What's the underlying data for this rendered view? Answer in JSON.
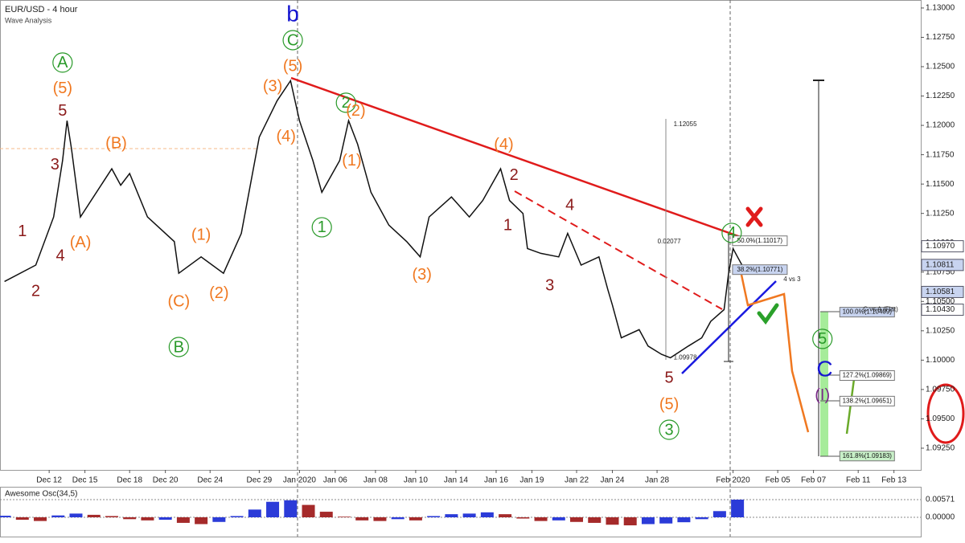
{
  "chart_data": [
    {
      "type": "line",
      "title": "EUR/USD - 4 hour",
      "subtitle": "Wave Analysis",
      "xlim": [
        0,
        206
      ],
      "ylim": [
        1.09065,
        1.13068
      ],
      "xticks": [
        {
          "value": 11,
          "label": "Dec 12"
        },
        {
          "value": 19,
          "label": "Dec 15"
        },
        {
          "value": 29,
          "label": "Dec 18"
        },
        {
          "value": 37,
          "label": "Dec 20"
        },
        {
          "value": 47,
          "label": "Dec 24"
        },
        {
          "value": 58,
          "label": "Dec 29"
        },
        {
          "value": 67,
          "label": "Jan 2020"
        },
        {
          "value": 75,
          "label": "Jan 06"
        },
        {
          "value": 84,
          "label": "Jan 08"
        },
        {
          "value": 93,
          "label": "Jan 10"
        },
        {
          "value": 102,
          "label": "Jan 14"
        },
        {
          "value": 111,
          "label": "Jan 16"
        },
        {
          "value": 119,
          "label": "Jan 19"
        },
        {
          "value": 129,
          "label": "Jan 22"
        },
        {
          "value": 137,
          "label": "Jan 24"
        },
        {
          "value": 147,
          "label": "Jan 28"
        },
        {
          "value": 164,
          "label": "Feb 2020"
        },
        {
          "value": 174,
          "label": "Feb 05"
        },
        {
          "value": 182,
          "label": "Feb 07"
        },
        {
          "value": 192,
          "label": "Feb 11"
        },
        {
          "value": 200,
          "label": "Feb 13"
        }
      ],
      "yticks": [
        {
          "value": 1.0925,
          "label": "1.09250"
        },
        {
          "value": 1.095,
          "label": "1.09500"
        },
        {
          "value": 1.0975,
          "label": "1.09750"
        },
        {
          "value": 1.1,
          "label": "1.10000"
        },
        {
          "value": 1.1025,
          "label": "1.10250"
        },
        {
          "value": 1.105,
          "label": "1.10500"
        },
        {
          "value": 1.1075,
          "label": "1.10750"
        },
        {
          "value": 1.11,
          "label": "1.11000"
        },
        {
          "value": 1.1125,
          "label": "1.11250"
        },
        {
          "value": 1.115,
          "label": "1.11500"
        },
        {
          "value": 1.1175,
          "label": "1.11750"
        },
        {
          "value": 1.12,
          "label": "1.12000"
        },
        {
          "value": 1.1225,
          "label": "1.12250"
        },
        {
          "value": 1.125,
          "label": "1.12500"
        },
        {
          "value": 1.1275,
          "label": "1.12750"
        },
        {
          "value": 1.13,
          "label": "1.13000"
        }
      ],
      "x": [
        1,
        8,
        12,
        14,
        15,
        16,
        18,
        25,
        27,
        29,
        33,
        39,
        40,
        45,
        50,
        54,
        58,
        62,
        65,
        67,
        70,
        72,
        76,
        78,
        80,
        83,
        87,
        91,
        94,
        96,
        101,
        105,
        108,
        112,
        114,
        117,
        118,
        121,
        125,
        127,
        130,
        134,
        136,
        137,
        139,
        143,
        145,
        148,
        150,
        154,
        157,
        159,
        162,
        163,
        164,
        165,
        166
      ],
      "series": [
        {
          "name": "EUR/USD",
          "color": "#111111",
          "values": [
            1.1067,
            1.1081,
            1.1122,
            1.117,
            1.1204,
            1.118,
            1.1122,
            1.1163,
            1.1149,
            1.1159,
            1.1122,
            1.1101,
            1.1074,
            1.1088,
            1.1074,
            1.1108,
            1.119,
            1.1221,
            1.1238,
            1.1204,
            1.117,
            1.1143,
            1.117,
            1.1204,
            1.1184,
            1.1143,
            1.1115,
            1.1101,
            1.1088,
            1.1122,
            1.1139,
            1.1122,
            1.1136,
            1.1163,
            1.1136,
            1.1125,
            1.1095,
            1.1091,
            1.1088,
            1.1108,
            1.1081,
            1.1088,
            1.106,
            1.1047,
            1.1019,
            1.1026,
            1.1012,
            1.1005,
            1.1002,
            1.1012,
            1.1019,
            1.1033,
            1.1043,
            1.1074,
            1.1095,
            1.1088,
            1.1081
          ]
        }
      ],
      "price_tags": [
        {
          "value": 1.1097,
          "label": "1.10970",
          "color": "#ffffff"
        },
        {
          "value": 1.10811,
          "label": "1.10811",
          "color": "#c8d4f0"
        },
        {
          "value": 1.10581,
          "label": "1.10581",
          "color": "#c8d4f0"
        },
        {
          "value": 1.1043,
          "label": "1.10430",
          "color": "#ffffff"
        }
      ],
      "fib_levels": [
        {
          "x": 170,
          "value": 1.11017,
          "label": "50.0%(1.11017)",
          "color": "#ffffff"
        },
        {
          "x": 170,
          "value": 1.10771,
          "label": "38.2%(1.10771)",
          "color": "#c8d4f0"
        },
        {
          "x": 194,
          "value": 1.10409,
          "label": "100.0%(1.10409)",
          "color": "#c8d4f0"
        },
        {
          "x": 194,
          "value": 1.09869,
          "label": "127.2%(1.09869)",
          "color": "#ffffff"
        },
        {
          "x": 194,
          "value": 1.09651,
          "label": "138.2%(1.09651)",
          "color": "#ffffff"
        },
        {
          "x": 194,
          "value": 1.09183,
          "label": "161.8%(1.09183)",
          "color": "#c8f0c8"
        }
      ],
      "annotations": [
        {
          "text": "b",
          "x": 65.5,
          "y": 1.12945,
          "color": "#1515d0"
        },
        {
          "text": "C",
          "x": 65.5,
          "y": 1.12726,
          "color": "#2a9a2a",
          "circled": true
        },
        {
          "text": "(5)",
          "x": 65.5,
          "y": 1.12507,
          "color": "#f07820"
        },
        {
          "text": "(3)",
          "x": 61,
          "y": 1.12336,
          "color": "#f07820"
        },
        {
          "text": "(4)",
          "x": 64,
          "y": 1.11905,
          "color": "#f07820"
        },
        {
          "text": "A",
          "x": 14,
          "y": 1.12535,
          "color": "#2a9a2a",
          "circled": true
        },
        {
          "text": "(5)",
          "x": 14,
          "y": 1.12316,
          "color": "#f07820"
        },
        {
          "text": "5",
          "x": 14,
          "y": 1.12124,
          "color": "#8b1a1a"
        },
        {
          "text": "3",
          "x": 12.3,
          "y": 1.11666,
          "color": "#8b1a1a"
        },
        {
          "text": "(B)",
          "x": 26,
          "y": 1.1185,
          "color": "#f07820"
        },
        {
          "text": "(A)",
          "x": 18,
          "y": 1.11002,
          "color": "#f07820"
        },
        {
          "text": "1",
          "x": 5,
          "y": 1.11098,
          "color": "#8b1a1a"
        },
        {
          "text": "4",
          "x": 13.5,
          "y": 1.10892,
          "color": "#8b1a1a"
        },
        {
          "text": "2",
          "x": 8,
          "y": 1.10591,
          "color": "#8b1a1a"
        },
        {
          "text": "(1)",
          "x": 45,
          "y": 1.1107,
          "color": "#f07820"
        },
        {
          "text": "(2)",
          "x": 49,
          "y": 1.10571,
          "color": "#f07820"
        },
        {
          "text": "(C)",
          "x": 40,
          "y": 1.10502,
          "color": "#f07820"
        },
        {
          "text": "B",
          "x": 40,
          "y": 1.10112,
          "color": "#2a9a2a",
          "circled": true
        },
        {
          "text": "1",
          "x": 72,
          "y": 1.11132,
          "color": "#2a9a2a",
          "circled": true
        },
        {
          "text": "2",
          "x": 77.4,
          "y": 1.12193,
          "color": "#2a9a2a",
          "circled": true
        },
        {
          "text": "(2)",
          "x": 79.6,
          "y": 1.12124,
          "color": "#f07820"
        },
        {
          "text": "(1)",
          "x": 78.7,
          "y": 1.117,
          "color": "#f07820"
        },
        {
          "text": "(3)",
          "x": 94.4,
          "y": 1.10728,
          "color": "#f07820"
        },
        {
          "text": "(4)",
          "x": 112.7,
          "y": 1.11837,
          "color": "#f07820"
        },
        {
          "text": "2",
          "x": 115,
          "y": 1.11577,
          "color": "#8b1a1a"
        },
        {
          "text": "1",
          "x": 113.6,
          "y": 1.11152,
          "color": "#8b1a1a"
        },
        {
          "text": "4",
          "x": 127.5,
          "y": 1.11323,
          "color": "#8b1a1a"
        },
        {
          "text": "3",
          "x": 123,
          "y": 1.10639,
          "color": "#8b1a1a"
        },
        {
          "text": "5",
          "x": 149.7,
          "y": 1.09852,
          "color": "#8b1a1a"
        },
        {
          "text": "(5)",
          "x": 149.7,
          "y": 1.09626,
          "color": "#f07820"
        },
        {
          "text": "3",
          "x": 149.7,
          "y": 1.09407,
          "color": "#2a9a2a",
          "circled": true
        },
        {
          "text": "4",
          "x": 163.7,
          "y": 1.11084,
          "color": "#2a9a2a",
          "circled": true
        },
        {
          "text": "5",
          "x": 184,
          "y": 1.10181,
          "color": "#2a9a2a",
          "circled": true
        },
        {
          "text": "C",
          "x": 184.5,
          "y": 1.09921,
          "color": "#1515d0"
        },
        {
          "text": "(I)",
          "x": 184,
          "y": 1.09702,
          "color": "#7a2a8a"
        }
      ],
      "notes": [
        {
          "text": "4 vs 3",
          "x": 177.2,
          "y": 1.10687
        },
        {
          "text": "C vs A (Flat)",
          "x": 197,
          "y": 1.1043
        },
        {
          "text": "1.12055",
          "x": 153.3,
          "y": 1.12008
        },
        {
          "text": "0.02077",
          "x": 149.7,
          "y": 1.11009
        },
        {
          "text": "1.09978",
          "x": 153.3,
          "y": 1.10021
        }
      ]
    },
    {
      "type": "bar",
      "title": "Awesome Osc(34,5)",
      "xlim": [
        0,
        206
      ],
      "ylim": [
        -0.00623,
        0.00986
      ],
      "yticks": [
        {
          "value": 0.00571,
          "label": "0.00571"
        },
        {
          "value": 0,
          "label": "0.00000"
        }
      ],
      "colors": {
        "up": "#2b3bd8",
        "down": "#a52a2a"
      },
      "x": [
        1,
        5,
        9,
        13,
        17,
        21,
        25,
        29,
        33,
        37,
        41,
        45,
        49,
        53,
        57,
        61,
        65,
        69,
        73,
        77,
        81,
        85,
        89,
        93,
        97,
        101,
        105,
        109,
        113,
        117,
        121,
        125,
        129,
        133,
        137,
        141,
        145,
        149,
        153,
        157,
        161,
        165
      ],
      "values": [
        0.0005,
        -0.0008,
        -0.0012,
        0.0006,
        0.0012,
        0.0008,
        0.0004,
        -0.0006,
        -0.001,
        -0.0008,
        -0.0018,
        -0.0022,
        -0.0015,
        0.0004,
        0.0025,
        0.005,
        0.0055,
        0.004,
        0.0018,
        0.0002,
        -0.001,
        -0.0012,
        -0.0006,
        -0.001,
        0.0004,
        0.001,
        0.0012,
        0.0016,
        0.001,
        -0.0004,
        -0.0012,
        -0.001,
        -0.0015,
        -0.0018,
        -0.0024,
        -0.0026,
        -0.0022,
        -0.002,
        -0.0016,
        -0.0006,
        0.002,
        0.0057
      ]
    }
  ]
}
